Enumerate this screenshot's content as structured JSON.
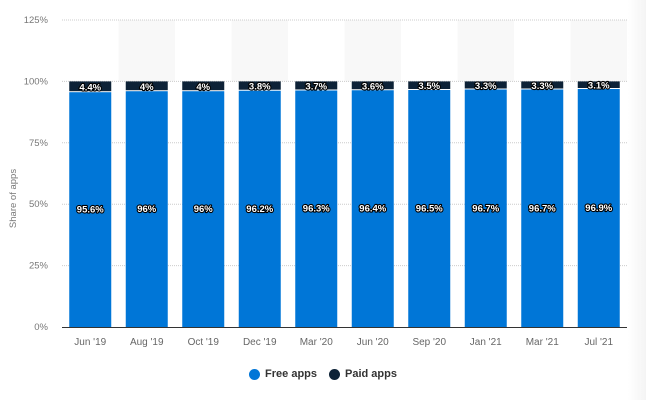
{
  "chart_data": {
    "type": "bar",
    "stacked": true,
    "ylabel": "Share of apps",
    "ylim": [
      0,
      125
    ],
    "yticks": [
      "0%",
      "25%",
      "50%",
      "75%",
      "100%",
      "125%"
    ],
    "ytick_values": [
      0,
      25,
      50,
      75,
      100,
      125
    ],
    "grid": true,
    "categories": [
      "Jun '19",
      "Aug '19",
      "Oct '19",
      "Dec '19",
      "Mar '20",
      "Jun '20",
      "Sep '20",
      "Jan '21",
      "Mar '21",
      "Jul '21"
    ],
    "series": [
      {
        "name": "Free apps",
        "color": "#0076d7",
        "values": [
          95.6,
          96,
          96,
          96.2,
          96.3,
          96.4,
          96.5,
          96.7,
          96.7,
          96.9
        ],
        "labels": [
          "95.6%",
          "96%",
          "96%",
          "96.2%",
          "96.3%",
          "96.4%",
          "96.5%",
          "96.7%",
          "96.7%",
          "96.9%"
        ]
      },
      {
        "name": "Paid apps",
        "color": "#0d2237",
        "values": [
          4.4,
          4,
          4,
          3.8,
          3.7,
          3.6,
          3.5,
          3.3,
          3.3,
          3.1
        ],
        "labels": [
          "4.4%",
          "4%",
          "4%",
          "3.8%",
          "3.7%",
          "3.6%",
          "3.5%",
          "3.3%",
          "3.3%",
          "3.1%"
        ]
      }
    ],
    "legend_position": "bottom"
  }
}
